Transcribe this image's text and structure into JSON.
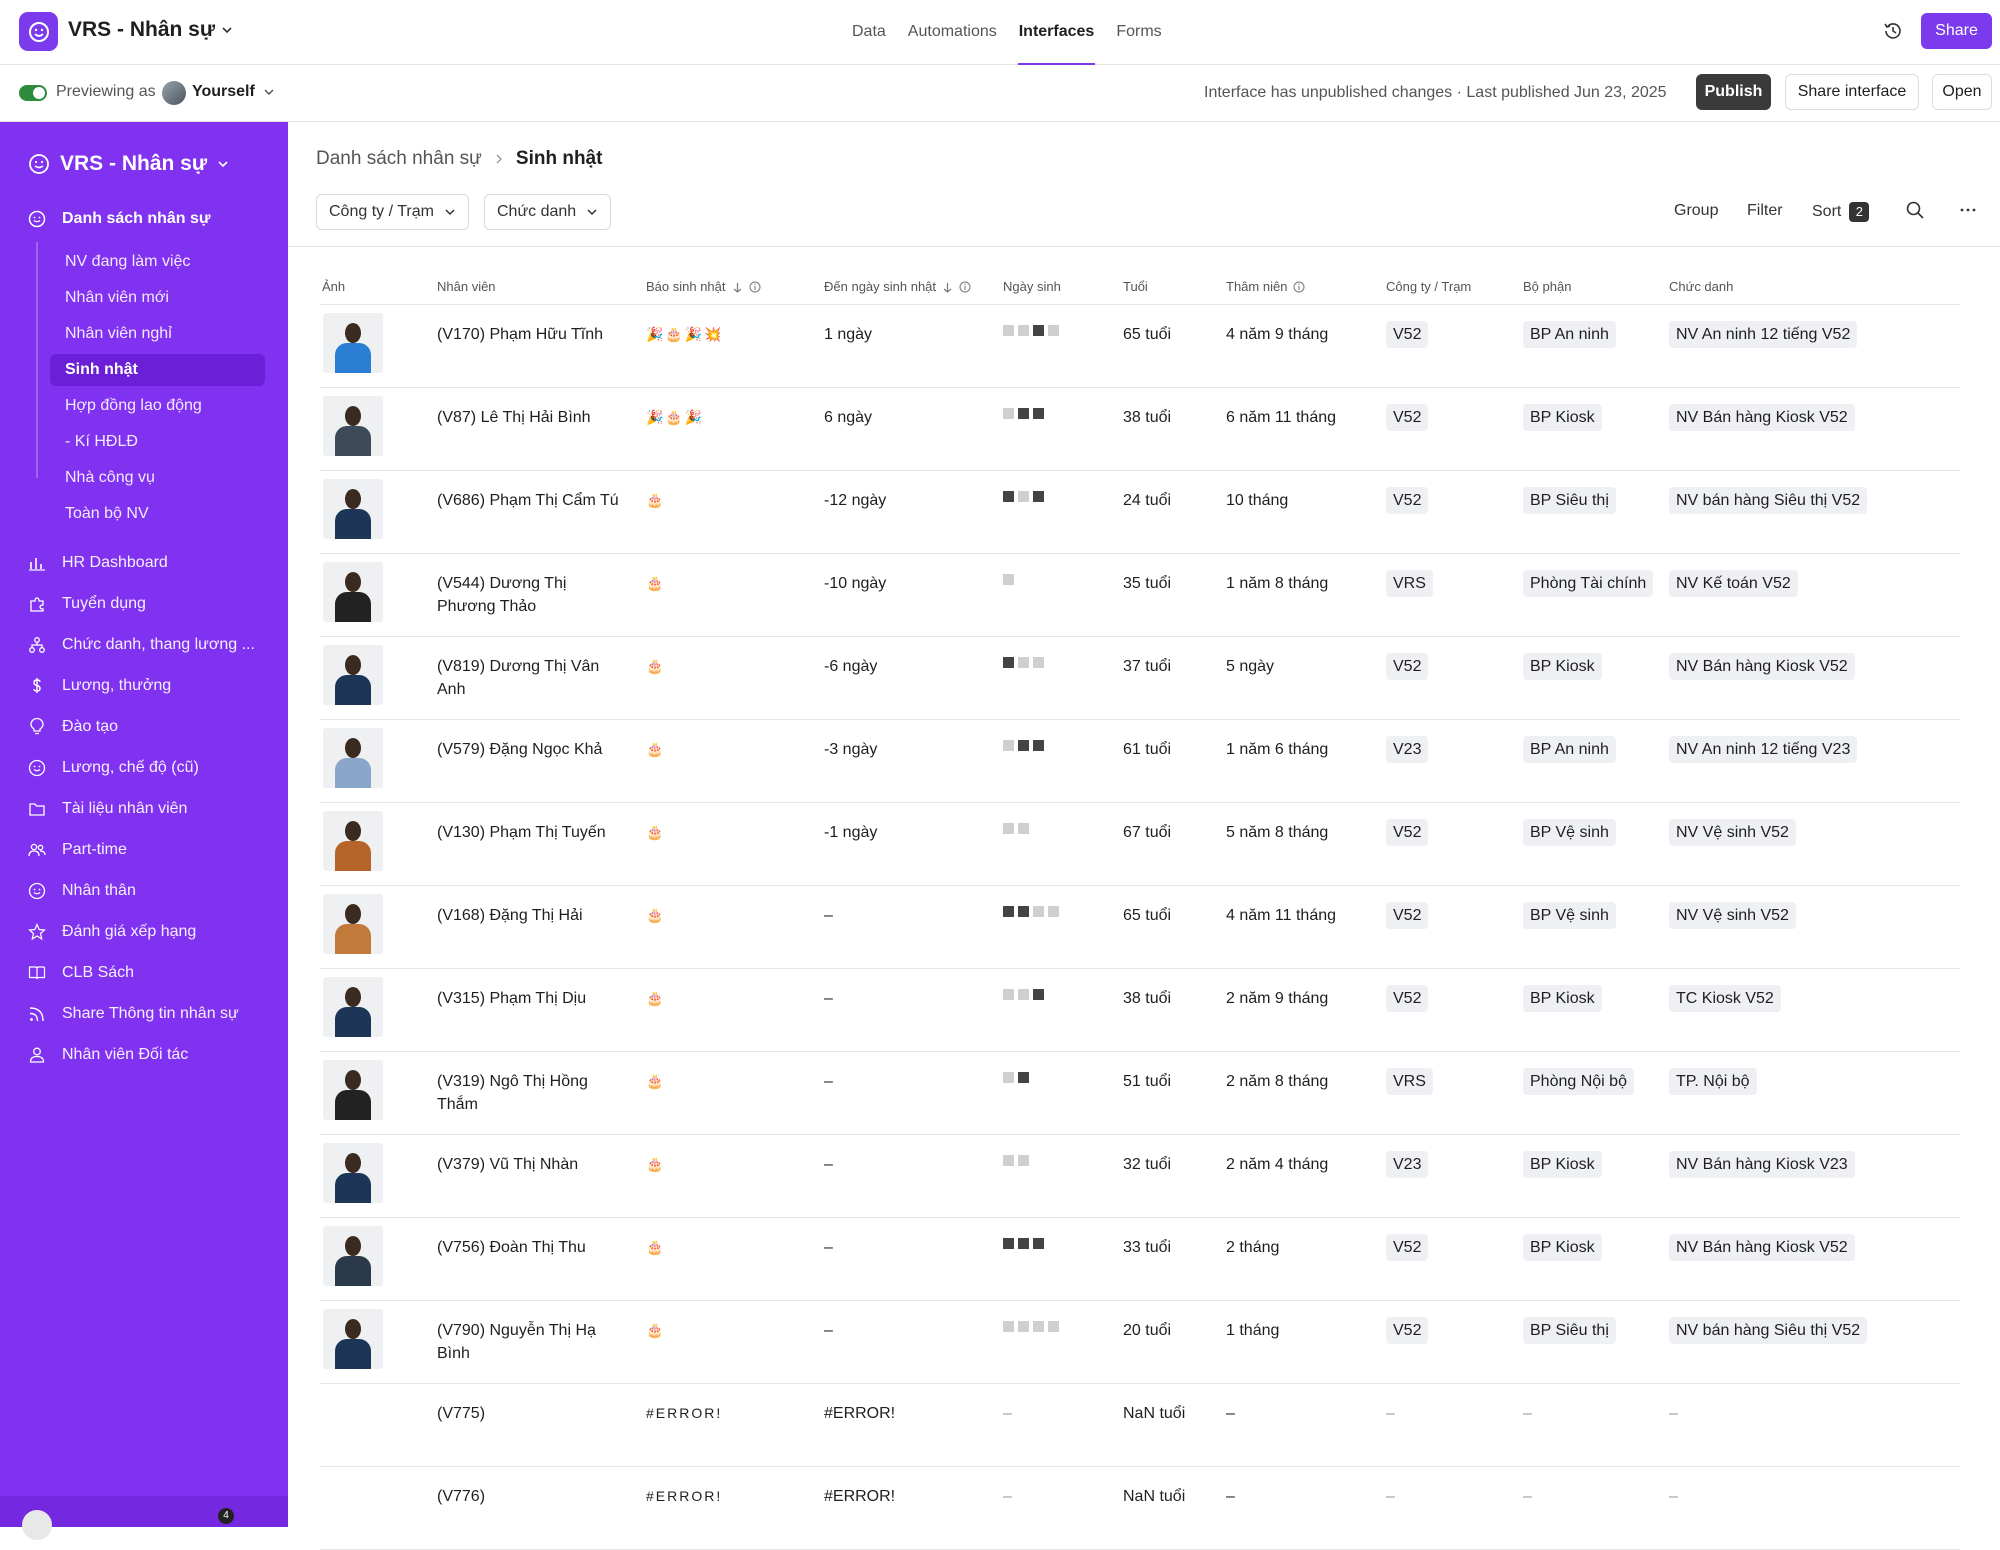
{
  "topbar": {
    "app_title": "VRS - Nhân sự",
    "tabs": [
      "Data",
      "Automations",
      "Interfaces",
      "Forms"
    ],
    "active_tab": "Interfaces",
    "share_label": "Share"
  },
  "subbar": {
    "preview_label": "Previewing as",
    "preview_user": "Yourself",
    "status": "Interface has unpublished changes · Last published Jun 23, 2025",
    "publish_label": "Publish",
    "share_interface_label": "Share interface",
    "open_label": "Open"
  },
  "sidebar": {
    "title": "VRS - Nhân sự",
    "section": "Danh sách nhân sự",
    "children": [
      "NV đang làm việc",
      "Nhân viên mới",
      "Nhân viên nghỉ",
      "Sinh nhật",
      "Hợp đồng lao động",
      "- Kí HĐLĐ",
      "Nhà công vụ",
      "Toàn bộ NV"
    ],
    "active_child": "Sinh nhật",
    "items": [
      {
        "label": "HR Dashboard",
        "icon": "bar-chart-icon"
      },
      {
        "label": "Tuyển dụng",
        "icon": "puzzle-icon"
      },
      {
        "label": "Chức danh, thang lương ...",
        "icon": "org-chart-icon"
      },
      {
        "label": "Lương, thưởng",
        "icon": "dollar-icon"
      },
      {
        "label": "Đào tạo",
        "icon": "lightbulb-icon"
      },
      {
        "label": "Lương, chế độ (cũ)",
        "icon": "smiley-icon"
      },
      {
        "label": "Tài liệu nhân viên",
        "icon": "folder-icon"
      },
      {
        "label": "Part-time",
        "icon": "users-icon"
      },
      {
        "label": "Nhân thân",
        "icon": "smiley-icon"
      },
      {
        "label": "Đánh giá xếp hạng",
        "icon": "star-icon"
      },
      {
        "label": "CLB Sách",
        "icon": "book-icon"
      },
      {
        "label": "Share Thông tin nhân sự",
        "icon": "rss-icon"
      },
      {
        "label": "Nhân viên Đối tác",
        "icon": "user-icon"
      }
    ],
    "notification_count": "4"
  },
  "main": {
    "breadcrumb": {
      "parent": "Danh sách nhân sự",
      "current": "Sinh nhật"
    },
    "filters": [
      "Công ty / Trạm",
      "Chức danh"
    ],
    "toolbar": {
      "group": "Group",
      "filter": "Filter",
      "sort": "Sort",
      "sort_count": "2"
    },
    "columns": [
      "Ảnh",
      "Nhân viên",
      "Báo sinh nhật",
      "Đến ngày sinh nhật",
      "Ngày sinh",
      "Tuổi",
      "Thâm niên",
      "Công ty / Trạm",
      "Bộ phận",
      "Chức danh"
    ],
    "rows": [
      {
        "name": "(V170) Phạm Hữu Tĩnh",
        "bao": "🎉🎂🎉💥",
        "den": "1 ngày",
        "tuoi": "65 tuổi",
        "tham": "4 năm 9 tháng",
        "cty": "V52",
        "bp": "BP An ninh",
        "cd": "NV An ninh 12 tiếng V52",
        "photo": true,
        "uniform": "#2a7fd4"
      },
      {
        "name": "(V87) Lê Thị Hải Bình",
        "bao": "🎉🎂🎉",
        "den": "6 ngày",
        "tuoi": "38 tuổi",
        "tham": "6 năm 11 tháng",
        "cty": "V52",
        "bp": "BP Kiosk",
        "cd": "NV Bán hàng Kiosk V52",
        "photo": true,
        "uniform": "#3c4a5a"
      },
      {
        "name": "(V686) Phạm Thị Cẩm Tú",
        "bao": "🎂",
        "den": "-12 ngày",
        "tuoi": "24 tuổi",
        "tham": "10 tháng",
        "cty": "V52",
        "bp": "BP Siêu thị",
        "cd": "NV bán hàng Siêu thị V52",
        "photo": true,
        "uniform": "#1d3557"
      },
      {
        "name": "(V544) Dương Thị Phương Thảo",
        "bao": "🎂",
        "den": "-10 ngày",
        "tuoi": "35 tuổi",
        "tham": "1 năm 8 tháng",
        "cty": "VRS",
        "bp": "Phòng Tài chính",
        "cd": "NV Kế toán V52",
        "photo": true,
        "uniform": "#222"
      },
      {
        "name": "(V819) Dương Thị Vân Anh",
        "bao": "🎂",
        "den": "-6 ngày",
        "tuoi": "37 tuổi",
        "tham": "5 ngày",
        "cty": "V52",
        "bp": "BP Kiosk",
        "cd": "NV Bán hàng Kiosk V52",
        "photo": true,
        "uniform": "#1d3557"
      },
      {
        "name": "(V579) Đặng Ngọc Khả",
        "bao": "🎂",
        "den": "-3 ngày",
        "tuoi": "61 tuổi",
        "tham": "1 năm 6 tháng",
        "cty": "V23",
        "bp": "BP An ninh",
        "cd": "NV An ninh 12 tiếng V23",
        "photo": true,
        "uniform": "#8aa6c8"
      },
      {
        "name": "(V130) Phạm Thị Tuyến",
        "bao": "🎂",
        "den": "-1 ngày",
        "tuoi": "67 tuổi",
        "tham": "5 năm 8 tháng",
        "cty": "V52",
        "bp": "BP Vệ sinh",
        "cd": "NV Vệ sinh V52",
        "photo": true,
        "uniform": "#b5652a"
      },
      {
        "name": "(V168) Đặng Thị Hải",
        "bao": "🎂",
        "den": "–",
        "tuoi": "65 tuổi",
        "tham": "4 năm 11 tháng",
        "cty": "V52",
        "bp": "BP Vệ sinh",
        "cd": "NV Vệ sinh V52",
        "photo": true,
        "uniform": "#c27a3a"
      },
      {
        "name": "(V315) Phạm Thị Dịu",
        "bao": "🎂",
        "den": "–",
        "tuoi": "38 tuổi",
        "tham": "2 năm 9 tháng",
        "cty": "V52",
        "bp": "BP Kiosk",
        "cd": "TC Kiosk V52",
        "photo": true,
        "uniform": "#1d3557"
      },
      {
        "name": "(V319) Ngô Thị Hồng Thắm",
        "bao": "🎂",
        "den": "–",
        "tuoi": "51 tuổi",
        "tham": "2 năm 8 tháng",
        "cty": "VRS",
        "bp": "Phòng Nội bộ",
        "cd": "TP. Nội bộ",
        "photo": true,
        "uniform": "#222"
      },
      {
        "name": "(V379) Vũ Thị Nhàn",
        "bao": "🎂",
        "den": "–",
        "tuoi": "32 tuổi",
        "tham": "2 năm 4 tháng",
        "cty": "V23",
        "bp": "BP Kiosk",
        "cd": "NV Bán hàng Kiosk V23",
        "photo": true,
        "uniform": "#1d3557"
      },
      {
        "name": "(V756) Đoàn Thị Thu",
        "bao": "🎂",
        "den": "–",
        "tuoi": "33 tuổi",
        "tham": "2 tháng",
        "cty": "V52",
        "bp": "BP Kiosk",
        "cd": "NV Bán hàng Kiosk V52",
        "photo": true,
        "uniform": "#2b3a4a"
      },
      {
        "name": "(V790) Nguyễn Thị Hạ Bình",
        "bao": "🎂",
        "den": "–",
        "tuoi": "20 tuổi",
        "tham": "1 tháng",
        "cty": "V52",
        "bp": "BP Siêu thị",
        "cd": "NV bán hàng Siêu thị V52",
        "photo": true,
        "uniform": "#1d3557"
      },
      {
        "name": "(V775)",
        "bao": "#ERROR!",
        "den": "#ERROR!",
        "tuoi": "NaN tuổi",
        "tham": "–",
        "cty": "–",
        "bp": "–",
        "cd": "–",
        "photo": false
      },
      {
        "name": "(V776)",
        "bao": "#ERROR!",
        "den": "#ERROR!",
        "tuoi": "NaN tuổi",
        "tham": "–",
        "cty": "–",
        "bp": "–",
        "cd": "–",
        "photo": false
      }
    ],
    "ngay_sinh_missing": "–"
  }
}
